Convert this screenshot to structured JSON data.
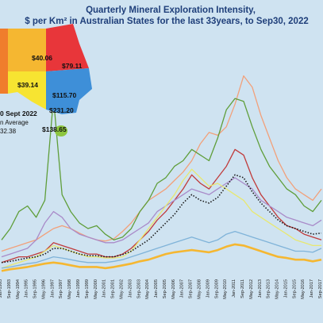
{
  "chart_data": {
    "type": "line",
    "title": "Quarterly Mineral Exploration Intensity,",
    "subtitle": "$ per Km² in Australian States for the last 33years, to Sep30, 2022",
    "xlabel": "",
    "ylabel": "",
    "grid": false,
    "x_labels": [
      "Jan-1993",
      "Sep-1993",
      "May-1994",
      "Jan-1995",
      "Sep-1995",
      "May-1996",
      "Jan-1997",
      "Sep-1997",
      "May-1998",
      "Jan-1999",
      "Sep-1999",
      "May-2000",
      "Jan-2001",
      "Sep-2001",
      "May-2002",
      "Jan-2003",
      "Sep-2003",
      "May-2004",
      "Jan-2005",
      "Sep-2005",
      "May-2006",
      "Jan-2007",
      "Sep-2007",
      "May-2008",
      "Jan-2009",
      "Sep-2009",
      "May-2010",
      "Jan-2011",
      "Sep-2011",
      "May-2012",
      "Jan-2013",
      "Sep-2013",
      "May-2014",
      "Jan-2015",
      "Sep-2015",
      "May-2016",
      "Jan-2017",
      "Sep-2017"
    ],
    "ylim": [
      0,
      400
    ],
    "map_values": [
      {
        "label": "$40.06",
        "color": "#f5b731"
      },
      {
        "label": "$79.11",
        "color": "#e8363a"
      },
      {
        "label": "$39.14",
        "color": "#f7e431"
      },
      {
        "label": "$115.70",
        "color": "#3e8fd8"
      },
      {
        "label": "$231.20",
        "color": "#3e8fd8"
      },
      {
        "label": "$138.65",
        "color": "#8dc63f"
      }
    ],
    "map_note_1": "0 Sept 2022",
    "map_note_2": "n Average",
    "map_note_3": "32.38",
    "series": [
      {
        "color": "#f2a07a",
        "values": [
          40,
          45,
          50,
          55,
          60,
          70,
          80,
          85,
          80,
          72,
          65,
          60,
          58,
          62,
          75,
          90,
          110,
          130,
          140,
          150,
          165,
          180,
          200,
          230,
          250,
          245,
          260,
          300,
          350,
          330,
          280,
          240,
          200,
          170,
          150,
          140,
          130,
          150
        ]
      },
      {
        "color": "#5f9e3a",
        "values": [
          60,
          80,
          110,
          120,
          100,
          130,
          310,
          140,
          110,
          90,
          80,
          85,
          70,
          60,
          65,
          80,
          110,
          130,
          160,
          170,
          190,
          200,
          220,
          210,
          200,
          240,
          290,
          310,
          305,
          260,
          220,
          190,
          170,
          150,
          140,
          120,
          110,
          130
        ]
      },
      {
        "color": "#c03b3b",
        "values": [
          20,
          25,
          30,
          30,
          35,
          40,
          55,
          50,
          45,
          40,
          35,
          35,
          30,
          30,
          35,
          45,
          60,
          75,
          95,
          110,
          130,
          150,
          175,
          160,
          150,
          170,
          190,
          220,
          210,
          170,
          140,
          120,
          100,
          85,
          80,
          70,
          65,
          60
        ]
      },
      {
        "color": "#a98bc9",
        "values": [
          30,
          35,
          40,
          45,
          60,
          90,
          110,
          100,
          80,
          70,
          65,
          60,
          55,
          55,
          60,
          70,
          80,
          90,
          110,
          120,
          130,
          140,
          150,
          145,
          140,
          150,
          160,
          170,
          160,
          150,
          130,
          120,
          110,
          100,
          95,
          90,
          85,
          95
        ]
      },
      {
        "color": "#e8e870",
        "values": [
          10,
          15,
          20,
          25,
          30,
          40,
          50,
          45,
          40,
          35,
          30,
          30,
          28,
          28,
          30,
          40,
          60,
          80,
          100,
          120,
          140,
          165,
          185,
          170,
          155,
          160,
          150,
          140,
          130,
          110,
          100,
          90,
          80,
          70,
          60,
          55,
          50,
          50
        ]
      },
      {
        "color": "#7fb3d9",
        "values": [
          10,
          12,
          15,
          18,
          20,
          25,
          30,
          28,
          25,
          22,
          20,
          20,
          20,
          22,
          25,
          30,
          35,
          40,
          45,
          50,
          55,
          60,
          65,
          60,
          55,
          60,
          70,
          75,
          70,
          65,
          60,
          55,
          50,
          45,
          40,
          40,
          38,
          45
        ]
      },
      {
        "color": "#f5b731",
        "values": [
          5,
          8,
          10,
          12,
          15,
          18,
          20,
          18,
          15,
          12,
          12,
          12,
          10,
          12,
          15,
          18,
          22,
          25,
          30,
          35,
          38,
          40,
          42,
          40,
          38,
          42,
          48,
          52,
          50,
          45,
          40,
          35,
          30,
          28,
          25,
          25,
          22,
          25
        ]
      },
      {
        "color": "#1a1a1a",
        "dashed": true,
        "values": [
          20,
          22,
          25,
          28,
          30,
          35,
          45,
          45,
          40,
          35,
          32,
          32,
          30,
          30,
          34,
          40,
          50,
          60,
          75,
          90,
          105,
          125,
          140,
          130,
          125,
          135,
          155,
          175,
          170,
          145,
          125,
          110,
          95,
          85,
          80,
          75,
          70,
          72
        ]
      }
    ]
  }
}
